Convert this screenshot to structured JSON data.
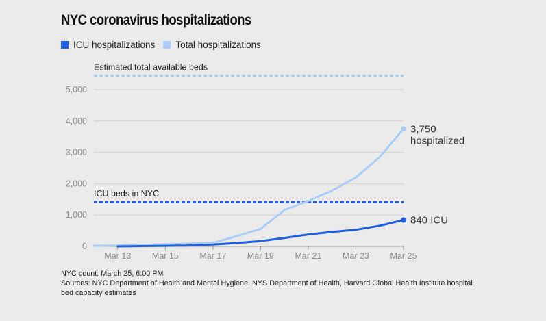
{
  "title": "NYC coronavirus hospitalizations",
  "legend": [
    {
      "label": "ICU hospitalizations",
      "color": "#1f5fe0"
    },
    {
      "label": "Total hospitalizations",
      "color": "#a9cdf7"
    }
  ],
  "notes": {
    "count": "NYC count: March 25, 6:00 PM",
    "sources": "Sources: NYC Department of Health and Mental Hygiene, NYS Department of Health, Harvard Global Health Institute hospital bed capacity estimates"
  },
  "chart_data": {
    "type": "line",
    "title": "NYC coronavirus hospitalizations",
    "xlabel": "",
    "ylabel": "",
    "ylim": [
      0,
      5000
    ],
    "yticks": [
      0,
      1000,
      2000,
      3000,
      4000,
      5000
    ],
    "ytick_labels": [
      "0",
      "1,000",
      "2,000",
      "3,000",
      "4,000",
      "5,000"
    ],
    "xlim": [
      12,
      25
    ],
    "xticks": [
      13,
      15,
      17,
      19,
      21,
      23,
      25
    ],
    "xtick_labels": [
      "Mar 13",
      "Mar 15",
      "Mar 17",
      "Mar 19",
      "Mar 21",
      "Mar 23",
      "Mar 25"
    ],
    "grid": true,
    "series": [
      {
        "name": "Total hospitalizations",
        "color": "#a9cdf7",
        "x": [
          12,
          13,
          14,
          15,
          16,
          17,
          18,
          19,
          20,
          21,
          22,
          23,
          24,
          25
        ],
        "values": [
          20,
          30,
          50,
          70,
          90,
          110,
          330,
          560,
          1160,
          1450,
          1780,
          2200,
          2850,
          3750
        ],
        "end_label": [
          "3,750",
          "hospitalized"
        ]
      },
      {
        "name": "ICU hospitalizations",
        "color": "#1f5fe0",
        "x": [
          13,
          14,
          15,
          16,
          17,
          18,
          19,
          20,
          21,
          22,
          23,
          24,
          25
        ],
        "values": [
          0,
          10,
          20,
          30,
          60,
          110,
          170,
          270,
          380,
          460,
          530,
          660,
          840
        ],
        "end_label": [
          "840 ICU"
        ]
      }
    ],
    "reference_lines": [
      {
        "label": "Estimated total available beds",
        "value": 5450,
        "color": "#a9cdf7"
      },
      {
        "label": "ICU beds in NYC",
        "value": 1420,
        "color": "#1f5fe0"
      }
    ]
  }
}
